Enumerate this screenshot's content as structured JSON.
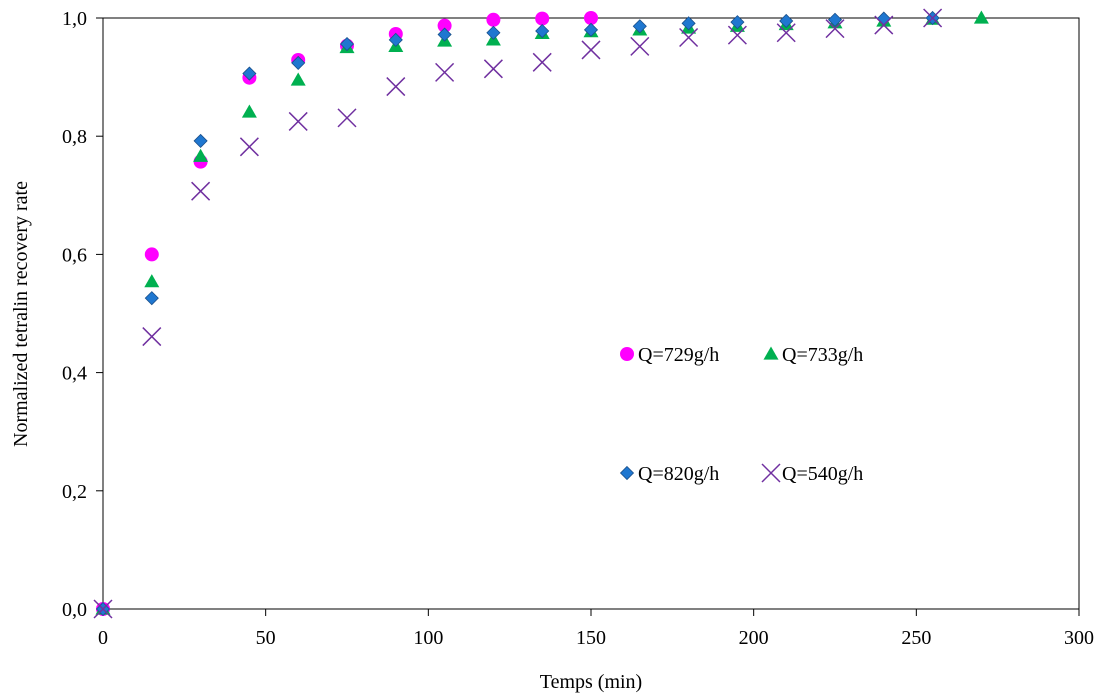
{
  "chart_data": {
    "type": "scatter",
    "title": "",
    "xlabel": "Temps (min)",
    "ylabel": "Normalized tetralin recovery rate",
    "xlim": [
      0,
      300
    ],
    "ylim": [
      0,
      1
    ],
    "xticks": [
      0,
      50,
      100,
      150,
      200,
      250,
      300
    ],
    "yticks": [
      0,
      0.2,
      0.4,
      0.6,
      0.8,
      1.0
    ],
    "xtick_labels": [
      "0",
      "50",
      "100",
      "150",
      "200",
      "250",
      "300"
    ],
    "ytick_labels": [
      "0,0",
      "0,2",
      "0,4",
      "0,6",
      "0,8",
      "1,0"
    ],
    "grid": false,
    "legend_position": "center-right",
    "series": [
      {
        "name": "Q=729g/h",
        "marker": "circle",
        "color": "#ff00ff",
        "x": [
          0,
          15,
          30,
          45,
          60,
          75,
          90,
          105,
          120,
          135,
          150
        ],
        "y": [
          0,
          0.6,
          0.757,
          0.899,
          0.929,
          0.953,
          0.973,
          0.987,
          0.997,
          0.999,
          1.0
        ]
      },
      {
        "name": "Q=733g/h",
        "marker": "triangle",
        "color": "#00b050",
        "x": [
          0,
          15,
          30,
          45,
          60,
          75,
          90,
          105,
          120,
          135,
          150,
          165,
          180,
          195,
          210,
          225,
          240,
          255,
          270
        ],
        "y": [
          0,
          0.554,
          0.766,
          0.841,
          0.895,
          0.95,
          0.952,
          0.961,
          0.963,
          0.974,
          0.977,
          0.98,
          0.983,
          0.986,
          0.989,
          0.992,
          0.995,
          0.998,
          1.0
        ]
      },
      {
        "name": "Q=820g/h",
        "marker": "diamond",
        "color": "#1f77d0",
        "x": [
          0,
          15,
          30,
          45,
          60,
          75,
          90,
          105,
          120,
          135,
          150,
          165,
          180,
          195,
          210,
          225,
          240,
          255
        ],
        "y": [
          0,
          0.526,
          0.792,
          0.906,
          0.924,
          0.956,
          0.963,
          0.972,
          0.975,
          0.978,
          0.98,
          0.986,
          0.991,
          0.993,
          0.995,
          0.997,
          0.999,
          1.0
        ]
      },
      {
        "name": "Q=540g/h",
        "marker": "x",
        "color": "#7030a0",
        "x": [
          0,
          15,
          30,
          45,
          60,
          75,
          90,
          105,
          120,
          135,
          150,
          165,
          180,
          195,
          210,
          225,
          240,
          255
        ],
        "y": [
          0,
          0.461,
          0.707,
          0.782,
          0.825,
          0.831,
          0.884,
          0.908,
          0.914,
          0.925,
          0.946,
          0.952,
          0.967,
          0.971,
          0.975,
          0.982,
          0.988,
          1.0
        ]
      }
    ]
  }
}
